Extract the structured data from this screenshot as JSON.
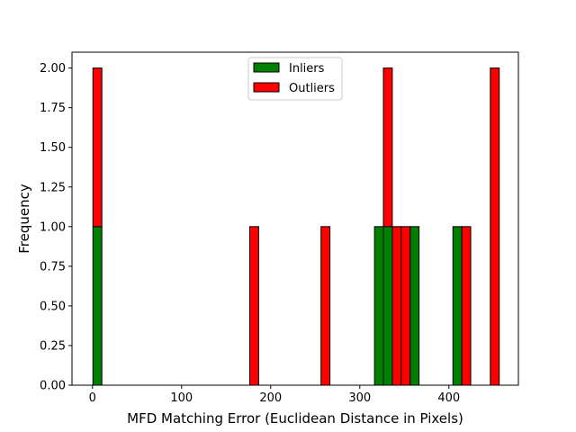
{
  "chart_data": {
    "type": "bar",
    "subtype": "stacked-histogram",
    "title": "",
    "xlabel": "MFD Matching Error (Euclidean Distance in Pixels)",
    "ylabel": "Frequency",
    "xlim": [
      -23,
      478
    ],
    "ylim": [
      0,
      2.1
    ],
    "xticks": [
      0,
      100,
      200,
      300,
      400
    ],
    "xtick_labels": [
      "0",
      "100",
      "200",
      "300",
      "400"
    ],
    "yticks": [
      0,
      0.25,
      0.5,
      0.75,
      1.0,
      1.25,
      1.5,
      1.75,
      2.0
    ],
    "ytick_labels": [
      "0.00",
      "0.25",
      "0.50",
      "0.75",
      "1.00",
      "1.25",
      "1.50",
      "1.75",
      "2.00"
    ],
    "grid": false,
    "legend_position": "top-center",
    "bin_edges": [
      0.5,
      10.5,
      176.5,
      186.5,
      256.5,
      266.5,
      316.5,
      326.5,
      336.5,
      346.5,
      356.5,
      366.5,
      404.5,
      414.5,
      424.5,
      446.5,
      456.5
    ],
    "series": [
      {
        "name": "Inliers",
        "color": "#008000",
        "bins": [
          {
            "x0": 0.5,
            "x1": 10.5,
            "value": 1
          },
          {
            "x0": 316.5,
            "x1": 326.5,
            "value": 1
          },
          {
            "x0": 326.5,
            "x1": 336.5,
            "value": 1
          },
          {
            "x0": 356.5,
            "x1": 366.5,
            "value": 1
          },
          {
            "x0": 404.5,
            "x1": 414.5,
            "value": 1
          }
        ]
      },
      {
        "name": "Outliers",
        "color": "#ff0000",
        "bins": [
          {
            "x0": 0.5,
            "x1": 10.5,
            "value": 1
          },
          {
            "x0": 176.5,
            "x1": 186.5,
            "value": 1
          },
          {
            "x0": 256.5,
            "x1": 266.5,
            "value": 1
          },
          {
            "x0": 326.5,
            "x1": 336.5,
            "value": 1
          },
          {
            "x0": 336.5,
            "x1": 346.5,
            "value": 1
          },
          {
            "x0": 346.5,
            "x1": 356.5,
            "value": 1
          },
          {
            "x0": 414.5,
            "x1": 424.5,
            "value": 1
          },
          {
            "x0": 446.5,
            "x1": 456.5,
            "value": 2
          }
        ]
      }
    ]
  }
}
